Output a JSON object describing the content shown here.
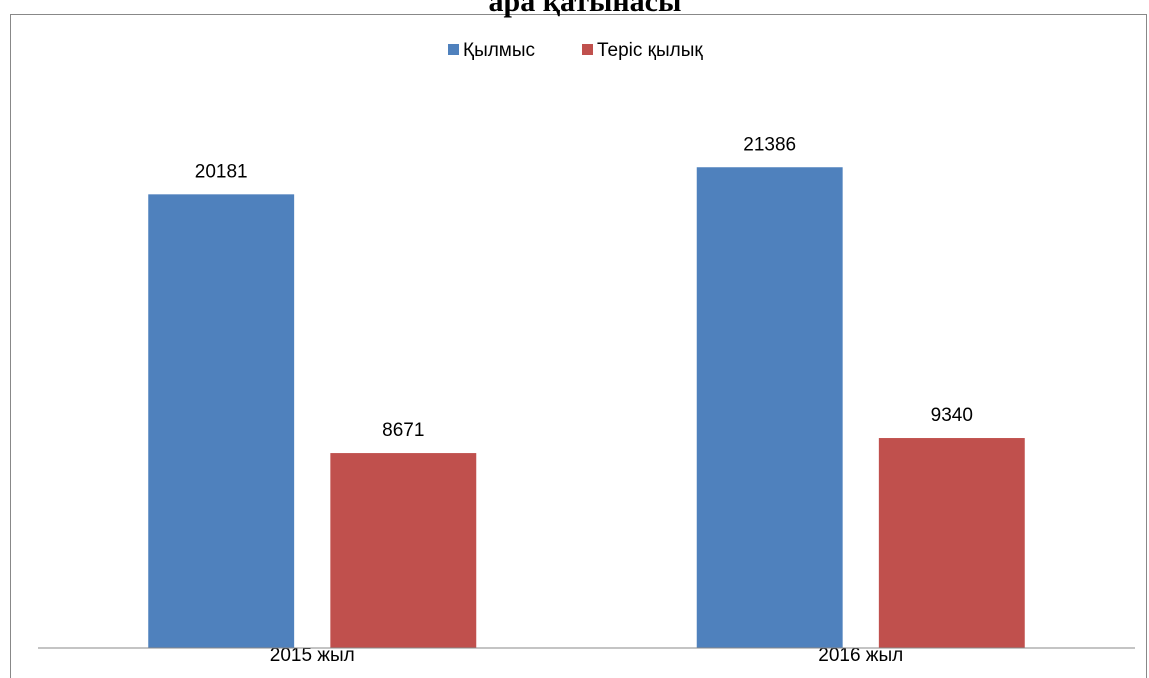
{
  "chart_data": {
    "type": "bar",
    "title": "ара қатынасы",
    "categories": [
      "2015 жыл",
      "2016 жыл"
    ],
    "series": [
      {
        "name": "Қылмыс",
        "color": "#4f81bd",
        "values": [
          20181,
          21386
        ]
      },
      {
        "name": "Теріс қылық",
        "color": "#c0504d",
        "values": [
          8671,
          9340
        ]
      }
    ],
    "ylim": [
      0,
      25000
    ],
    "legend": "top"
  }
}
